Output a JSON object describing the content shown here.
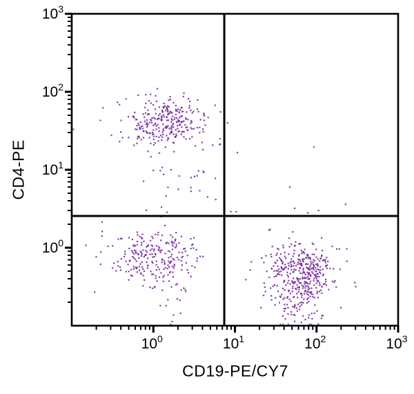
{
  "chart_data": {
    "type": "scatter",
    "title": "",
    "xlabel": "CD19-PE/CY7",
    "ylabel": "CD4-PE",
    "x_scale": "log",
    "y_scale": "log",
    "xlim_log": [
      -1,
      3
    ],
    "ylim_log": [
      -1,
      3
    ],
    "grid": false,
    "legend": "none",
    "axis_color": "#000000",
    "dot_color": "#6d1f96",
    "x_ticks": [
      {
        "label_base": "10",
        "label_exp": "0",
        "log_value": 0
      },
      {
        "label_base": "10",
        "label_exp": "1",
        "log_value": 1
      },
      {
        "label_base": "10",
        "label_exp": "2",
        "log_value": 2
      },
      {
        "label_base": "10",
        "label_exp": "3",
        "log_value": 3
      }
    ],
    "y_ticks": [
      {
        "label_base": "10",
        "label_exp": "0",
        "log_value": 0
      },
      {
        "label_base": "10",
        "label_exp": "1",
        "log_value": 1
      },
      {
        "label_base": "10",
        "label_exp": "2",
        "log_value": 2
      },
      {
        "label_base": "10",
        "label_exp": "3",
        "log_value": 3
      }
    ],
    "minor_tick_steps": [
      2,
      3,
      4,
      5,
      6,
      7,
      8,
      9
    ],
    "quadrant_gate_x": 7.4,
    "quadrant_gate_y": 2.55,
    "random_seed": 13,
    "clusters": [
      {
        "name": "upper-left-population",
        "cx_log": 0.1,
        "cy_log": 1.61,
        "sx_log": 0.28,
        "sy_log": 0.16,
        "count": 280
      },
      {
        "name": "upper-left-trail",
        "cx_log": 0.32,
        "cy_log": 0.95,
        "sx_log": 0.25,
        "sy_log": 0.3,
        "count": 30
      },
      {
        "name": "lower-left-population",
        "cx_log": 0.0,
        "cy_log": -0.12,
        "sx_log": 0.27,
        "sy_log": 0.17,
        "count": 235
      },
      {
        "name": "lower-left-trail",
        "cx_log": 0.19,
        "cy_log": -0.62,
        "sx_log": 0.13,
        "sy_log": 0.21,
        "count": 18
      },
      {
        "name": "lower-right-population",
        "cx_log": 1.84,
        "cy_log": -0.34,
        "sx_log": 0.22,
        "sy_log": 0.2,
        "count": 370
      },
      {
        "name": "lower-right-trail",
        "cx_log": 1.82,
        "cy_log": -0.78,
        "sx_log": 0.2,
        "sy_log": 0.16,
        "count": 55
      }
    ],
    "outlier_points": [
      [
        8.1,
        40
      ],
      [
        10.7,
        16.6
      ],
      [
        93,
        19.6
      ],
      [
        47,
        6.0
      ],
      [
        54,
        3.2
      ],
      [
        78,
        2.8
      ],
      [
        106,
        3.0
      ],
      [
        227,
        3.6
      ],
      [
        8.9,
        2.9
      ],
      [
        0.105,
        33
      ],
      [
        6.5,
        21
      ],
      [
        4.1,
        9.5
      ]
    ]
  }
}
